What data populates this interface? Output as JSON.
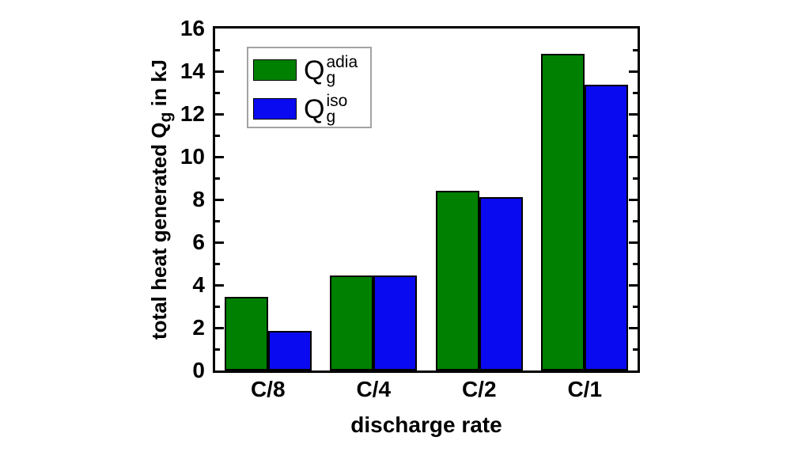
{
  "figure": {
    "background_color": "#ffffff",
    "axis_color": "#000000",
    "legend_border_color": "#a3a3a3"
  },
  "chart_data": {
    "type": "bar",
    "title": "",
    "categories": [
      "C/8",
      "C/4",
      "C/2",
      "C/1"
    ],
    "series": [
      {
        "name": "Qg-adia",
        "label": {
          "base": "Q",
          "sub": "g",
          "sup": "adia"
        },
        "color": "#008000",
        "values": [
          3.45,
          4.45,
          8.42,
          14.82
        ]
      },
      {
        "name": "Qg-iso",
        "label": {
          "base": "Q",
          "sub": "g",
          "sup": "iso"
        },
        "color": "#0a0af0",
        "values": [
          1.85,
          4.43,
          8.12,
          13.38
        ]
      }
    ],
    "xlabel": "discharge rate",
    "ylabel": {
      "prefix": "total heat generated Q",
      "sub": "g",
      "suffix": " in kJ"
    },
    "ylim": [
      0,
      16
    ],
    "y_major_step": 2,
    "y_minor_step": 1,
    "y_tick_labels": [
      "0",
      "2",
      "4",
      "6",
      "8",
      "10",
      "12",
      "14",
      "16"
    ],
    "grid": false,
    "legend_position": "top-left",
    "bar_border_color": "#000000"
  }
}
